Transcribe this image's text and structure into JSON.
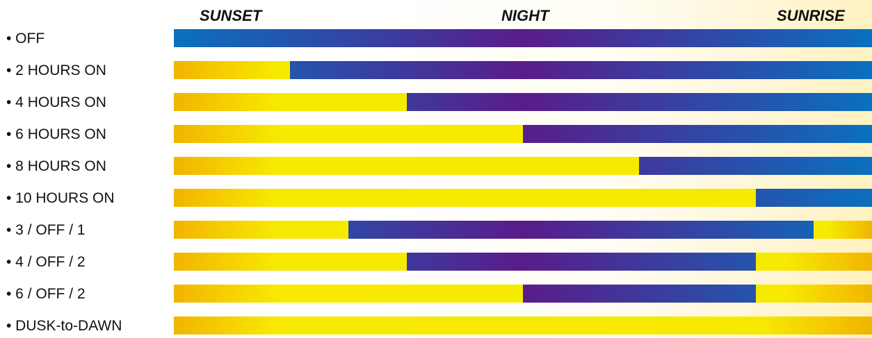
{
  "header": {
    "sunset": "SUNSET",
    "night": "NIGHT",
    "sunrise": "SUNRISE"
  },
  "rows": [
    {
      "label": "• OFF",
      "segments": [
        {
          "state": "off",
          "start": 0,
          "end": 12
        }
      ]
    },
    {
      "label": "• 2 HOURS ON",
      "segments": [
        {
          "state": "on",
          "start": 0,
          "end": 2
        },
        {
          "state": "off",
          "start": 2,
          "end": 12
        }
      ]
    },
    {
      "label": "• 4 HOURS ON",
      "segments": [
        {
          "state": "on",
          "start": 0,
          "end": 4
        },
        {
          "state": "off",
          "start": 4,
          "end": 12
        }
      ]
    },
    {
      "label": "• 6 HOURS ON",
      "segments": [
        {
          "state": "on",
          "start": 0,
          "end": 6
        },
        {
          "state": "off",
          "start": 6,
          "end": 12
        }
      ]
    },
    {
      "label": "• 8 HOURS ON",
      "segments": [
        {
          "state": "on",
          "start": 0,
          "end": 8
        },
        {
          "state": "off",
          "start": 8,
          "end": 12
        }
      ]
    },
    {
      "label": "• 10 HOURS ON",
      "segments": [
        {
          "state": "on",
          "start": 0,
          "end": 10
        },
        {
          "state": "off",
          "start": 10,
          "end": 12
        }
      ]
    },
    {
      "label": "• 3 / OFF / 1",
      "segments": [
        {
          "state": "on",
          "start": 0,
          "end": 3
        },
        {
          "state": "off",
          "start": 3,
          "end": 11
        },
        {
          "state": "on",
          "start": 11,
          "end": 12
        }
      ]
    },
    {
      "label": "• 4 / OFF / 2",
      "segments": [
        {
          "state": "on",
          "start": 0,
          "end": 4
        },
        {
          "state": "off",
          "start": 4,
          "end": 10
        },
        {
          "state": "on",
          "start": 10,
          "end": 12
        }
      ]
    },
    {
      "label": "• 6 / OFF / 2",
      "segments": [
        {
          "state": "on",
          "start": 0,
          "end": 6
        },
        {
          "state": "off",
          "start": 6,
          "end": 10
        },
        {
          "state": "on",
          "start": 10,
          "end": 12
        }
      ]
    },
    {
      "label": "• DUSK-to-DAWN",
      "segments": [
        {
          "state": "on",
          "start": 0,
          "end": 12
        }
      ]
    }
  ],
  "colors": {
    "on": "#f6ea00",
    "on_edge": "#f2b400",
    "off_edge": "#0a70bf",
    "off_mid": "#5a1c8a",
    "text": "#111111"
  }
}
